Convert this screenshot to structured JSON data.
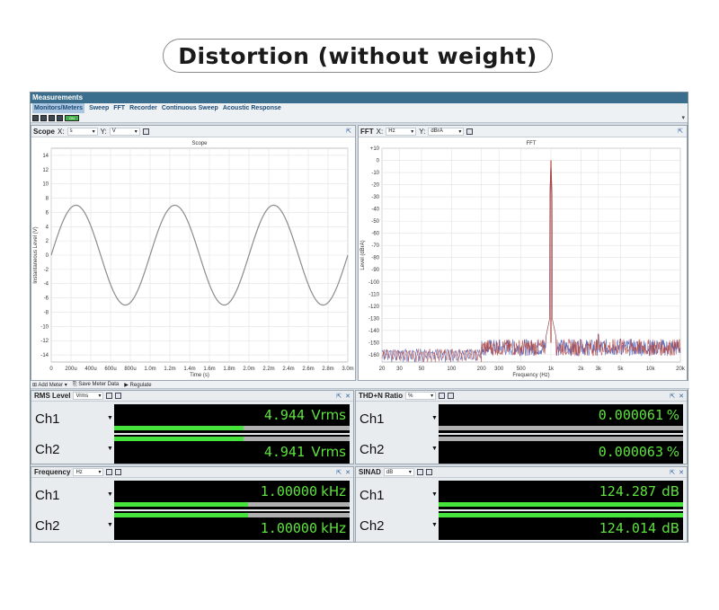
{
  "banner": "Distortion (without weight)",
  "app": {
    "title": "Measurements",
    "menu": [
      "Monitors/Meters",
      "Sweep",
      "FFT",
      "Recorder",
      "Continuous Sweep",
      "Acoustic Response"
    ],
    "on_label": "ON"
  },
  "scope": {
    "name": "Scope",
    "x_label": "X:",
    "x_unit": "s",
    "y_label": "Y:",
    "y_unit": "V"
  },
  "fft": {
    "name": "FFT",
    "x_label": "X:",
    "x_unit": "Hz",
    "y_label": "Y:",
    "y_unit": "dBrA"
  },
  "meter_toolbar": {
    "add": "Add Meter",
    "save": "Save Meter Data",
    "regulate": "Regulate"
  },
  "meters": {
    "rms": {
      "name": "RMS Level",
      "unit_sel": "Vrms",
      "ch1_label": "Ch1",
      "ch2_label": "Ch2",
      "ch1": "4.944",
      "ch2": "4.941",
      "unit": "Vrms",
      "ch1_fill": 0.55,
      "ch2_fill": 0.55
    },
    "thdn": {
      "name": "THD+N Ratio",
      "unit_sel": "%",
      "ch1_label": "Ch1",
      "ch2_label": "Ch2",
      "ch1": "0.000061",
      "ch2": "0.000063",
      "unit": "%",
      "ch1_fill": 0.0,
      "ch2_fill": 0.0
    },
    "freq": {
      "name": "Frequency",
      "unit_sel": "Hz",
      "ch1_label": "Ch1",
      "ch2_label": "Ch2",
      "ch1": "1.00000",
      "ch2": "1.00000",
      "unit": "kHz",
      "ch1_fill": 0.57,
      "ch2_fill": 0.57
    },
    "sinad": {
      "name": "SINAD",
      "unit_sel": "dB",
      "ch1_label": "Ch1",
      "ch2_label": "Ch2",
      "ch1": "124.287",
      "ch2": "124.014",
      "unit": "dB",
      "ch1_fill": 1.0,
      "ch2_fill": 1.0
    }
  },
  "chart_data": [
    {
      "type": "line",
      "title": "Scope",
      "xlabel": "Time (s)",
      "ylabel": "Instantaneous Level (V)",
      "x_ticks": [
        "0",
        "200u",
        "400u",
        "600u",
        "800u",
        "1.0m",
        "1.2m",
        "1.4m",
        "1.6m",
        "1.8m",
        "2.0m",
        "2.2m",
        "2.4m",
        "2.6m",
        "2.8m",
        "3.0m"
      ],
      "y_ticks": [
        "14",
        "12",
        "10",
        "8",
        "6",
        "4",
        "2",
        "0",
        "-2",
        "-4",
        "-6",
        "-8",
        "-10",
        "-12",
        "-14"
      ],
      "xlim": [
        0,
        0.003
      ],
      "ylim": [
        -15,
        15
      ],
      "series": [
        {
          "amplitude": 7.0,
          "frequency": 1000,
          "phase": 0
        }
      ],
      "grid": true,
      "color": "#8c8c8c"
    },
    {
      "type": "line",
      "title": "FFT",
      "xlabel": "Frequency (Hz)",
      "ylabel": "Level (dBrA)",
      "x_ticks": [
        "20",
        "30",
        "50",
        "100",
        "200",
        "300",
        "500",
        "1k",
        "2k",
        "3k",
        "5k",
        "10k",
        "20k"
      ],
      "x_tick_values": [
        20,
        30,
        50,
        100,
        200,
        300,
        500,
        1000,
        2000,
        3000,
        5000,
        10000,
        20000
      ],
      "y_ticks": [
        "+10",
        "0",
        "-10",
        "-20",
        "-30",
        "-40",
        "-50",
        "-60",
        "-70",
        "-80",
        "-90",
        "-100",
        "-110",
        "-120",
        "-130",
        "-140",
        "-150",
        "-160"
      ],
      "xlim": [
        20,
        20000
      ],
      "ylim": [
        -166,
        10
      ],
      "x_scale": "log",
      "fundamental": {
        "freq": 1000,
        "level": 0
      },
      "noise_floor": -155,
      "harmonics": [
        {
          "freq": 2000,
          "level": -148
        },
        {
          "freq": 3000,
          "level": -143
        },
        {
          "freq": 5000,
          "level": -147
        }
      ],
      "grid": true,
      "colors": {
        "ch1": "#b5443c",
        "ch2": "#3a55b8"
      }
    }
  ]
}
